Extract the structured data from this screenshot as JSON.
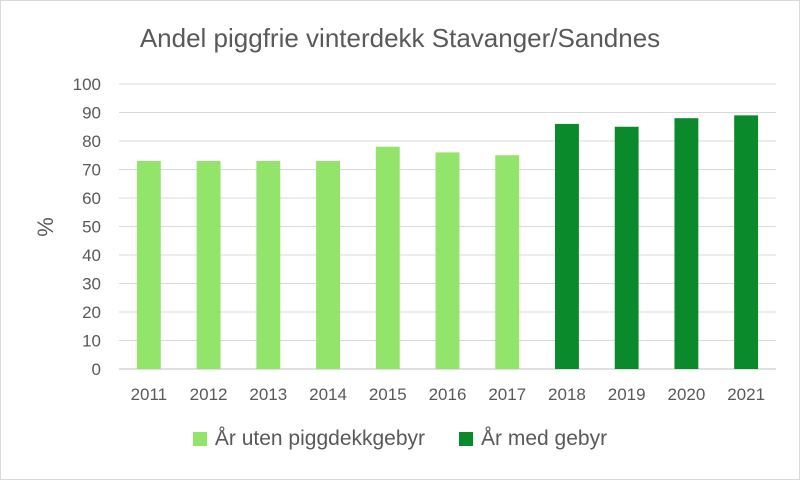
{
  "chart_data": {
    "type": "bar",
    "title": "Andel piggfrie vinterdekk Stavanger/Sandnes",
    "xlabel": "",
    "ylabel": "%",
    "ylim": [
      0,
      100
    ],
    "yticks": [
      0,
      10,
      20,
      30,
      40,
      50,
      60,
      70,
      80,
      90,
      100
    ],
    "grid": true,
    "legend_position": "bottom",
    "categories": [
      "2011",
      "2012",
      "2013",
      "2014",
      "2015",
      "2016",
      "2017",
      "2018",
      "2019",
      "2020",
      "2021"
    ],
    "values": [
      73,
      73,
      73,
      73,
      78,
      76,
      75,
      86,
      85,
      88,
      89
    ],
    "groups": [
      0,
      0,
      0,
      0,
      0,
      0,
      0,
      1,
      1,
      1,
      1
    ],
    "series": [
      {
        "name": "År uten piggdekkgebyr",
        "color": "#92e46a"
      },
      {
        "name": "År med gebyr",
        "color": "#0a8a2a"
      }
    ]
  }
}
